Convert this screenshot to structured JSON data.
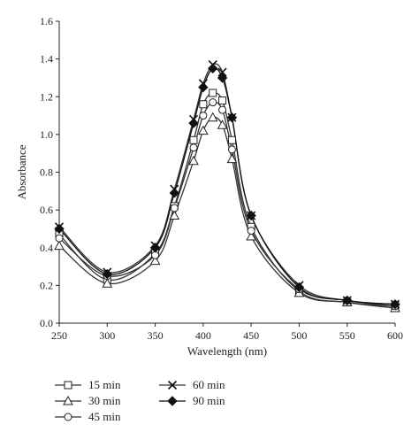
{
  "chart_data": {
    "type": "line",
    "xlabel": "Wavelength (nm)",
    "ylabel": "Absorbance",
    "xlim": [
      250,
      600
    ],
    "ylim": [
      0.0,
      1.6
    ],
    "xticks": [
      250,
      300,
      350,
      400,
      450,
      500,
      550,
      600
    ],
    "xtick_labels": [
      "250",
      "300",
      "350",
      "400",
      "450",
      "500",
      "550",
      "600"
    ],
    "yticks": [
      0.0,
      0.2,
      0.4,
      0.6,
      0.8,
      1.0,
      1.2,
      1.4,
      1.6
    ],
    "ytick_labels": [
      "0.0",
      "0.2",
      "0.4",
      "0.6",
      "0.8",
      "1.0",
      "1.2",
      "1.4",
      "1.6"
    ],
    "grid": false,
    "legend_position": "bottom",
    "series": [
      {
        "name": "15 min",
        "marker": "square",
        "marker_fill": "#ffffff",
        "line_color": "#333333",
        "points": [
          [
            250,
            0.47
          ],
          [
            300,
            0.23
          ],
          [
            350,
            0.37
          ],
          [
            370,
            0.62
          ],
          [
            390,
            0.97
          ],
          [
            400,
            1.16
          ],
          [
            410,
            1.22
          ],
          [
            420,
            1.18
          ],
          [
            430,
            0.97
          ],
          [
            450,
            0.51
          ],
          [
            500,
            0.17
          ],
          [
            550,
            0.11
          ],
          [
            600,
            0.09
          ]
        ],
        "markers_x": [
          250,
          300,
          350,
          370,
          390,
          400,
          410,
          420,
          430,
          450,
          500,
          550,
          600
        ]
      },
      {
        "name": "30 min",
        "marker": "triangle",
        "marker_fill": "#ffffff",
        "line_color": "#333333",
        "points": [
          [
            250,
            0.41
          ],
          [
            300,
            0.21
          ],
          [
            350,
            0.33
          ],
          [
            370,
            0.57
          ],
          [
            390,
            0.86
          ],
          [
            400,
            1.02
          ],
          [
            410,
            1.09
          ],
          [
            420,
            1.05
          ],
          [
            430,
            0.87
          ],
          [
            450,
            0.46
          ],
          [
            500,
            0.16
          ],
          [
            550,
            0.11
          ],
          [
            600,
            0.08
          ]
        ],
        "markers_x": [
          250,
          300,
          350,
          370,
          390,
          400,
          410,
          420,
          430,
          450,
          500,
          550,
          600
        ]
      },
      {
        "name": "45 min",
        "marker": "circle",
        "marker_fill": "#ffffff",
        "line_color": "#333333",
        "points": [
          [
            250,
            0.45
          ],
          [
            300,
            0.25
          ],
          [
            350,
            0.36
          ],
          [
            370,
            0.61
          ],
          [
            390,
            0.93
          ],
          [
            400,
            1.1
          ],
          [
            410,
            1.17
          ],
          [
            420,
            1.13
          ],
          [
            430,
            0.92
          ],
          [
            450,
            0.49
          ],
          [
            500,
            0.18
          ],
          [
            550,
            0.12
          ],
          [
            600,
            0.09
          ]
        ],
        "markers_x": [
          250,
          300,
          350,
          370,
          390,
          400,
          410,
          420,
          430,
          450,
          500,
          550,
          600
        ]
      },
      {
        "name": "60 min",
        "marker": "cross",
        "marker_fill": "#222222",
        "line_color": "#333333",
        "points": [
          [
            250,
            0.51
          ],
          [
            300,
            0.27
          ],
          [
            350,
            0.41
          ],
          [
            370,
            0.71
          ],
          [
            390,
            1.08
          ],
          [
            400,
            1.27
          ],
          [
            410,
            1.37
          ],
          [
            420,
            1.33
          ],
          [
            430,
            1.09
          ],
          [
            450,
            0.57
          ],
          [
            500,
            0.2
          ],
          [
            550,
            0.12
          ],
          [
            600,
            0.1
          ]
        ],
        "markers_x": [
          250,
          300,
          350,
          370,
          390,
          400,
          410,
          420,
          430,
          450,
          500,
          550,
          600
        ]
      },
      {
        "name": "90 min",
        "marker": "diamond",
        "marker_fill": "#111111",
        "line_color": "#111111",
        "points": [
          [
            250,
            0.5
          ],
          [
            300,
            0.26
          ],
          [
            350,
            0.4
          ],
          [
            370,
            0.69
          ],
          [
            390,
            1.06
          ],
          [
            400,
            1.25
          ],
          [
            410,
            1.35
          ],
          [
            420,
            1.3
          ],
          [
            430,
            1.09
          ],
          [
            450,
            0.57
          ],
          [
            500,
            0.19
          ],
          [
            550,
            0.12
          ],
          [
            600,
            0.1
          ]
        ],
        "markers_x": [
          250,
          300,
          350,
          370,
          390,
          400,
          410,
          420,
          430,
          450,
          500,
          550,
          600
        ]
      }
    ]
  }
}
